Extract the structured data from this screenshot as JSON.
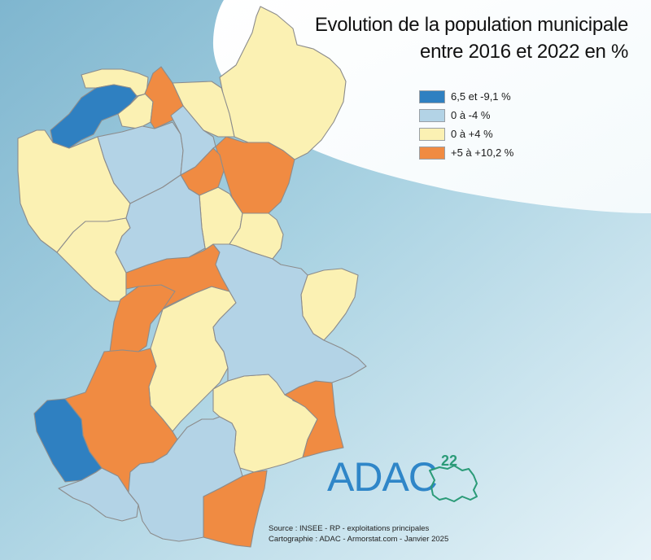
{
  "map": {
    "title_line1": "Evolution de la population municipale",
    "title_line2": "entre 2016 et 2022 en %",
    "legend": [
      {
        "label": "6,5 et -9,1 %",
        "color": "#2f80c1"
      },
      {
        "label": "0 à -4 %",
        "color": "#b3d3e6"
      },
      {
        "label": "0 à +4 %",
        "color": "#fbf1b3"
      },
      {
        "label": "+5 à +10,2 %",
        "color": "#f08b42"
      }
    ],
    "source_line1": "Source : INSEE - RP - exploitations principales",
    "source_line2": "Cartographie : ADAC - Armorstat.com - Janvier 2025",
    "logo_text": "ADAC",
    "logo_sup": "22",
    "colors": {
      "sea": "#8fc3d8",
      "border": "#8c8c8c",
      "logo_blue": "#2f86c8",
      "logo_green": "#2b9b78"
    }
  }
}
